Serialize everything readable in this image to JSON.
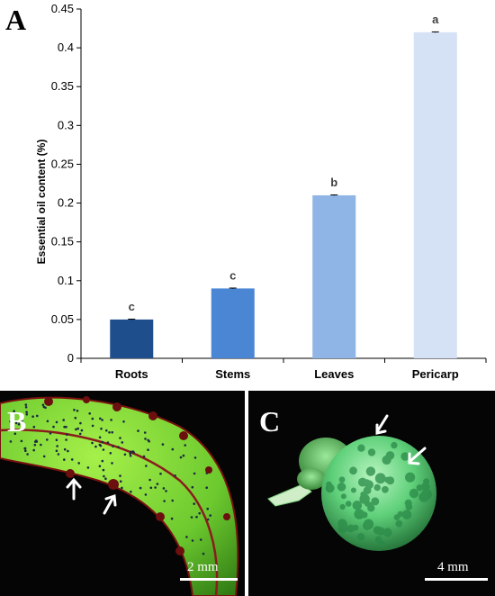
{
  "panels": {
    "a_letter": "A",
    "b_letter": "B",
    "c_letter": "C"
  },
  "chart_data": {
    "type": "bar",
    "title": "",
    "xlabel": "",
    "ylabel": "Essential oil content (%)",
    "categories": [
      "Roots",
      "Stems",
      "Leaves",
      "Pericarp"
    ],
    "values": [
      0.05,
      0.09,
      0.21,
      0.42
    ],
    "errors": [
      0.0005,
      0.0005,
      0.0005,
      0.0005
    ],
    "significance": [
      "c",
      "c",
      "b",
      "a"
    ],
    "colors": [
      "#1f4e8c",
      "#4a86d4",
      "#8fb4e6",
      "#d5e1f4"
    ],
    "ylim": [
      0,
      0.45
    ],
    "yticks": [
      0,
      0.05,
      0.1,
      0.15,
      0.2,
      0.25,
      0.3,
      0.35,
      0.4,
      0.45
    ],
    "ytick_labels": [
      "0",
      "0.05",
      "0.1",
      "0.15",
      "0.2",
      "0.25",
      "0.3",
      "0.35",
      "0.4",
      "0.45"
    ],
    "grid": false,
    "legend": "none"
  },
  "photos": {
    "b": {
      "scale_label": "2 mm",
      "subject": "leaf",
      "background_color": "#050505",
      "leaf_color": "#7ad23a",
      "gland_color": "#8b1a1a"
    },
    "c": {
      "scale_label": "4 mm",
      "subject": "fruit",
      "background_color": "#050505",
      "fruit_color": "#5fd07a"
    }
  }
}
